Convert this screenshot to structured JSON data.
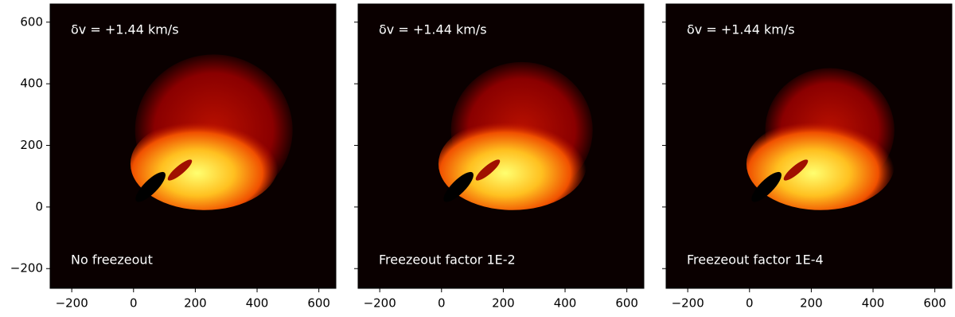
{
  "chart_data": [
    {
      "type": "image",
      "annotation": "δv = +1.44 km/s",
      "label": "No freezeout",
      "xlim": [
        -270,
        655
      ],
      "ylim": [
        -264,
        659
      ],
      "xticks": [
        {
          "value": -200,
          "label": "−200"
        },
        0,
        200,
        400,
        600
      ],
      "yticks": [
        {
          "value": -200,
          "label": "−200"
        },
        0,
        200,
        400,
        600
      ]
    },
    {
      "type": "image",
      "annotation": "δv = +1.44 km/s",
      "label": "Freezeout factor 1E-2",
      "xlim": [
        -270,
        655
      ],
      "ylim": [
        -264,
        659
      ],
      "xticks": [
        {
          "value": -200,
          "label": "−200"
        },
        0,
        200,
        400,
        600
      ],
      "yticks": [
        -200,
        0,
        200,
        400,
        600
      ]
    },
    {
      "type": "image",
      "annotation": "δv = +1.44 km/s",
      "label": "Freezeout factor 1E-4",
      "xlim": [
        -270,
        655
      ],
      "ylim": [
        -264,
        659
      ],
      "xticks": [
        {
          "value": -200,
          "label": "−200"
        },
        0,
        200,
        400,
        600
      ],
      "yticks": [
        -200,
        0,
        200,
        400,
        600
      ]
    }
  ]
}
